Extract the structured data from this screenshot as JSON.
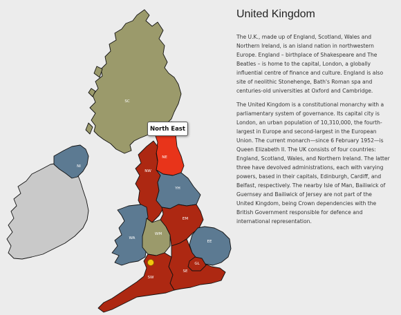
{
  "title": "United Kingdom",
  "paragraphs": [
    "The U.K., made up of England, Scotland, Wales and Northern Ireland, is an island nation in northwestern Europe. England – birthplace of Shakespeare and The Beatles – is home to the capital, London, a globally influential centre of finance and culture. England is also site of neolithic Stonehenge, Bath's Roman spa and centuries-old universities at Oxford and Cambridge.",
    "The United Kingdom is a constitutional monarchy with a parliamentary system of governance. Its capital city is London, an urban population of 10,310,000, the fourth-largest in Europe and second-largest in the European Union. The current monarch—since 6 February 1952—is Queen Elizabeth II. The UK consists of four countries: England, Scotland, Wales, and Northern Ireland. The latter three have devolved administrations, each with varying powers, based in their capitals, Edinburgh, Cardiff, and Belfast, respectively. The nearby Isle of Man, Bailiwick of Guernsey and Bailiwick of Jersey are not part of the United Kingdom, being Crown dependencies with the British Government responsible for defence and international representation."
  ],
  "tooltip": "North East",
  "colors": {
    "scotland": "#9b9a6b",
    "northern_ireland": "#5c7a92",
    "wales": "#5c7a92",
    "england_region": "#ad2812",
    "north_east_hover": "#e8341a",
    "yorkshire": "#5c7a92",
    "east": "#5c7a92",
    "west_midlands": "#9b9a6b",
    "ireland": "#c9c9c9",
    "marker": "#f2c70f"
  },
  "regions": [
    {
      "code": "SC",
      "name": "scotland"
    },
    {
      "code": "NI",
      "name": "northern-ireland"
    },
    {
      "code": "NE",
      "name": "north-east"
    },
    {
      "code": "NW",
      "name": "north-west"
    },
    {
      "code": "YH",
      "name": "yorkshire-humber"
    },
    {
      "code": "EM",
      "name": "east-midlands"
    },
    {
      "code": "WM",
      "name": "west-midlands"
    },
    {
      "code": "WA",
      "name": "wales"
    },
    {
      "code": "EE",
      "name": "east-of-england"
    },
    {
      "code": "GL",
      "name": "greater-london"
    },
    {
      "code": "SE",
      "name": "south-east"
    },
    {
      "code": "SW",
      "name": "south-west"
    }
  ]
}
